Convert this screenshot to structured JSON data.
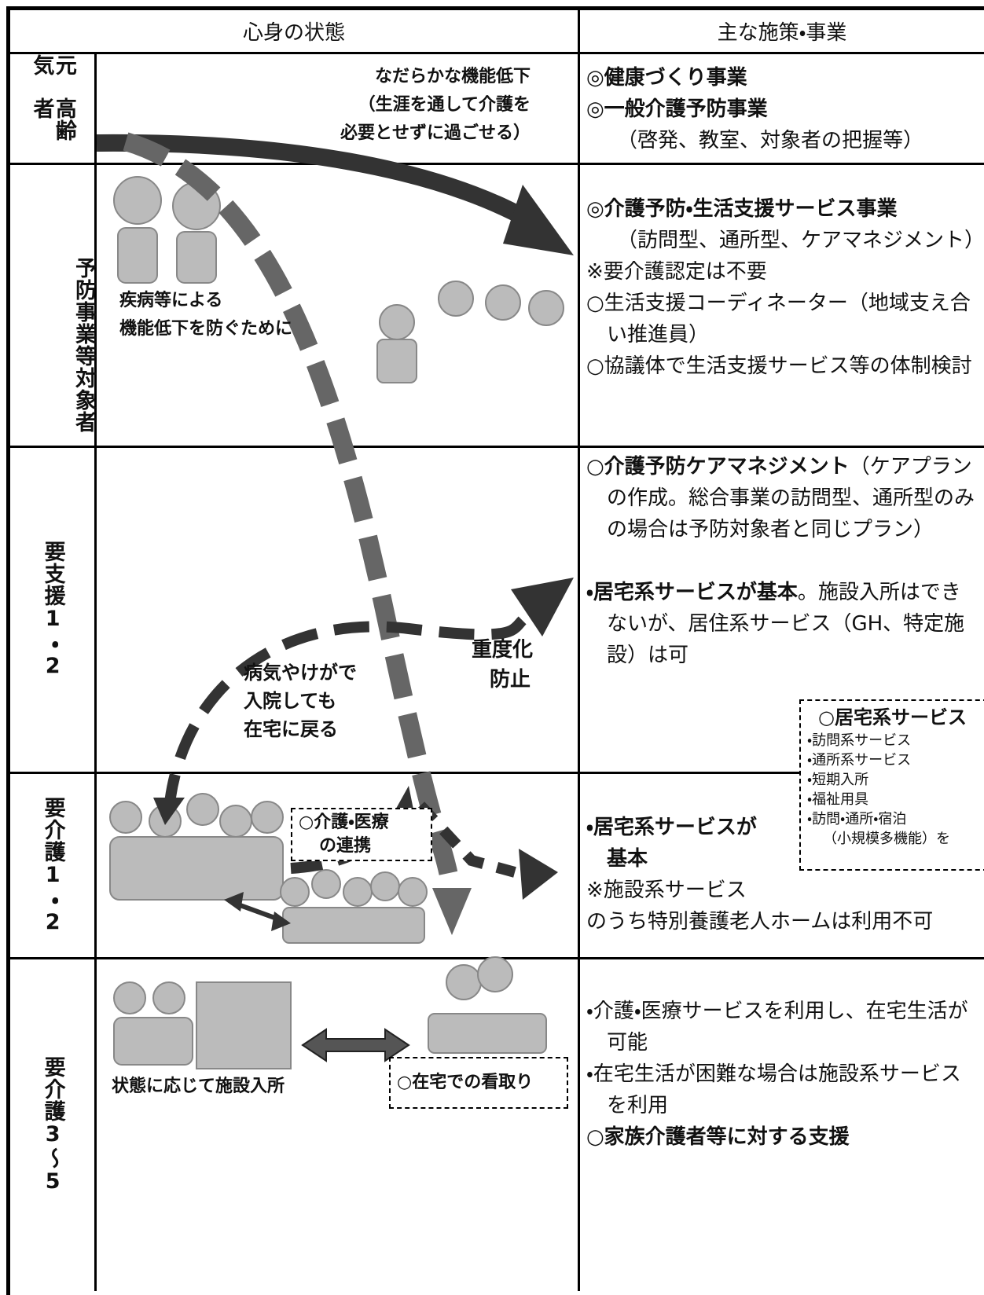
{
  "header": {
    "left": "心身の状態",
    "right": "主な施策・事業"
  },
  "rows": [
    {
      "label": [
        "元気",
        "高齢者"
      ],
      "paragraphs": [
        {
          "bold": "◎健康づくり事業"
        },
        {
          "bold": "◎一般介護予防事業"
        },
        {
          "text": "（啓発、教室、対象者の把握等）"
        }
      ]
    },
    {
      "label": [
        "予防事業等",
        "対象者"
      ],
      "paragraphs": [
        {
          "bold": "◎介護予防・生活支援サービス事業"
        },
        {
          "text": "（訪問型、通所型、ケアマネジメント）"
        },
        {
          "text": "※要介護認定は不要"
        },
        {
          "text": "○生活支援コーディネーター（地域支え合い推進員）"
        },
        {
          "text": "○協議体で生活支援サービス等の体制検討"
        }
      ]
    },
    {
      "label": [
        "要支援1・2"
      ],
      "paragraphs": [
        {
          "bold": "○介護予防ケアマネジメント",
          "text": "（ケアプランの作成。総合事業の訪問型、通所型のみの場合は予防対象者と同じプラン）"
        },
        {
          "bold": "・居宅系サービスが基本",
          "text": "。施設入所はできないが、居住系サービス（GH、特定施設）は可"
        }
      ]
    },
    {
      "label": [
        "要介護1・2"
      ],
      "paragraphs": [
        {
          "bold": "・居宅系サービスが基本"
        },
        {
          "text": "※施設系サービス"
        },
        {
          "text": "のうち特別養護老人ホームは利用不可"
        }
      ]
    },
    {
      "label": [
        "要介護",
        "3～5"
      ],
      "paragraphs": [
        {
          "text": "・介護・医療サービスを利用し、在宅生活が可能"
        },
        {
          "text": "・在宅生活が困難な場合は施設系サービスを利用"
        },
        {
          "bold": "○家族介護者等に対する支援"
        }
      ]
    }
  ],
  "annotations": {
    "decline": [
      "なだらかな機能低下",
      "（生涯を通して介護を",
      "必要とせずに過ごせる）"
    ],
    "prevent": [
      "疾病等による",
      "機能低下を防ぐために"
    ],
    "severity": [
      "重度化",
      "防止"
    ],
    "hospital": [
      "病気やけがで",
      "入院しても",
      "在宅に戻る"
    ],
    "facility": "状態に応じて施設入所",
    "cooperation": [
      "○介護・医療",
      "の連携"
    ],
    "endoflife": "○在宅での看取り"
  },
  "services_box": {
    "title": "○居宅系サービス",
    "items": [
      "・訪問系サービス",
      "・通所系サービス",
      "・短期入所",
      "・福祉用具",
      "・訪問・通所・宿泊",
      "（小規模多機能）を"
    ]
  }
}
